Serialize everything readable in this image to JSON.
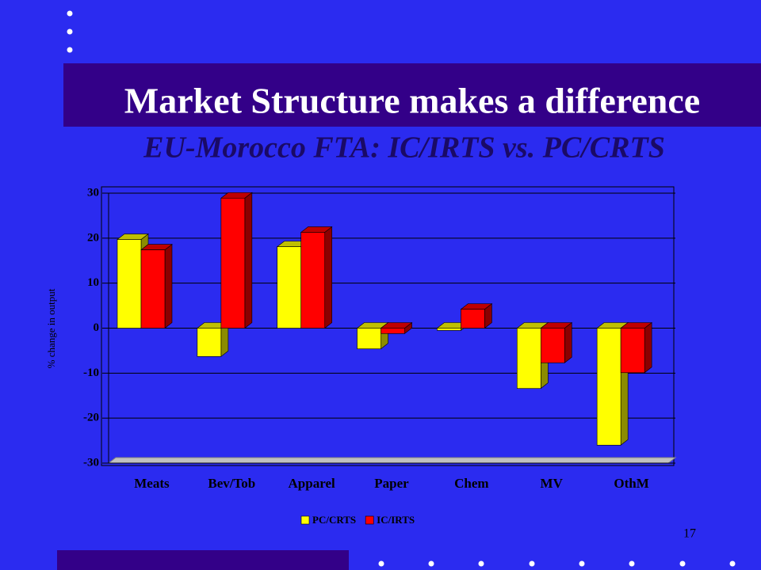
{
  "title": "Market Structure makes a difference",
  "subtitle": "EU-Morocco FTA: IC/IRTS vs. PC/CRTS",
  "page_number": "17",
  "chart_data": {
    "type": "bar3d",
    "y_label": "% change in output",
    "categories": [
      "Meats",
      "Bev/Tob",
      "Apparel",
      "Paper",
      "Chem",
      "MV",
      "OthM"
    ],
    "series": [
      {
        "name": "PC/CRTS",
        "color": "#ffff00",
        "values": [
          19.7,
          -6.3,
          18.1,
          -4.6,
          -0.5,
          -13.4,
          -26
        ]
      },
      {
        "name": "IC/IRTS",
        "color": "#ff0000",
        "values": [
          17.4,
          28.9,
          21.3,
          -1.2,
          4.2,
          -7.7,
          -9.9
        ]
      }
    ],
    "ylim": [
      -30,
      30
    ],
    "yticks": [
      -30,
      -20,
      -10,
      0,
      10,
      20,
      30
    ],
    "grid": true,
    "legend": "bottom"
  }
}
